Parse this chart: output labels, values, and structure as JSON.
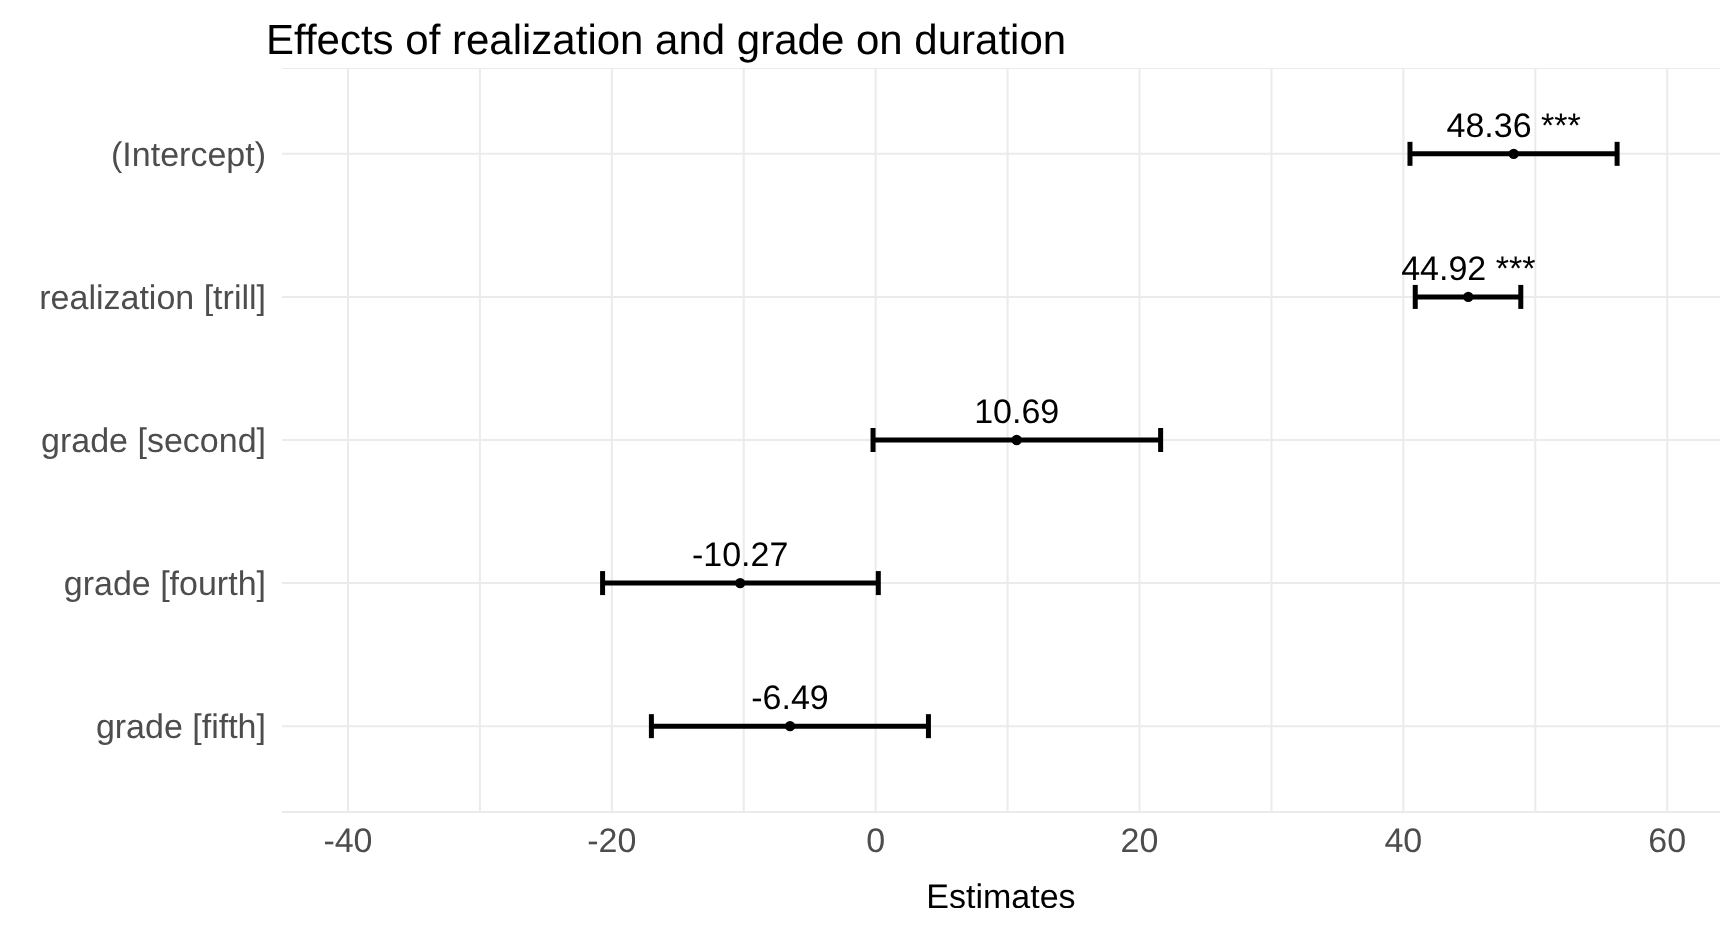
{
  "chart_data": {
    "type": "scatter",
    "orientation": "horizontal",
    "title": "Effects of realization and grade on duration",
    "xlabel": "Estimates",
    "categories": [
      "(Intercept)",
      "realization [trill]",
      "grade [second]",
      "grade [fourth]",
      "grade [fifth]"
    ],
    "values": [
      48.36,
      44.92,
      10.69,
      -10.27,
      -6.49
    ],
    "errors": [
      [
        40.5,
        56.2
      ],
      [
        40.9,
        48.9
      ],
      [
        -0.2,
        21.6
      ],
      [
        -20.7,
        0.2
      ],
      [
        -17.0,
        4.0
      ]
    ],
    "value_labels": [
      "48.36 ***",
      "44.92 ***",
      "10.69",
      "-10.27",
      "-6.49"
    ],
    "color": "#000000",
    "marker": "circle",
    "grid": true,
    "xlim": [
      -45,
      64
    ],
    "xticks": [
      -40,
      -20,
      0,
      20,
      40,
      60
    ]
  }
}
